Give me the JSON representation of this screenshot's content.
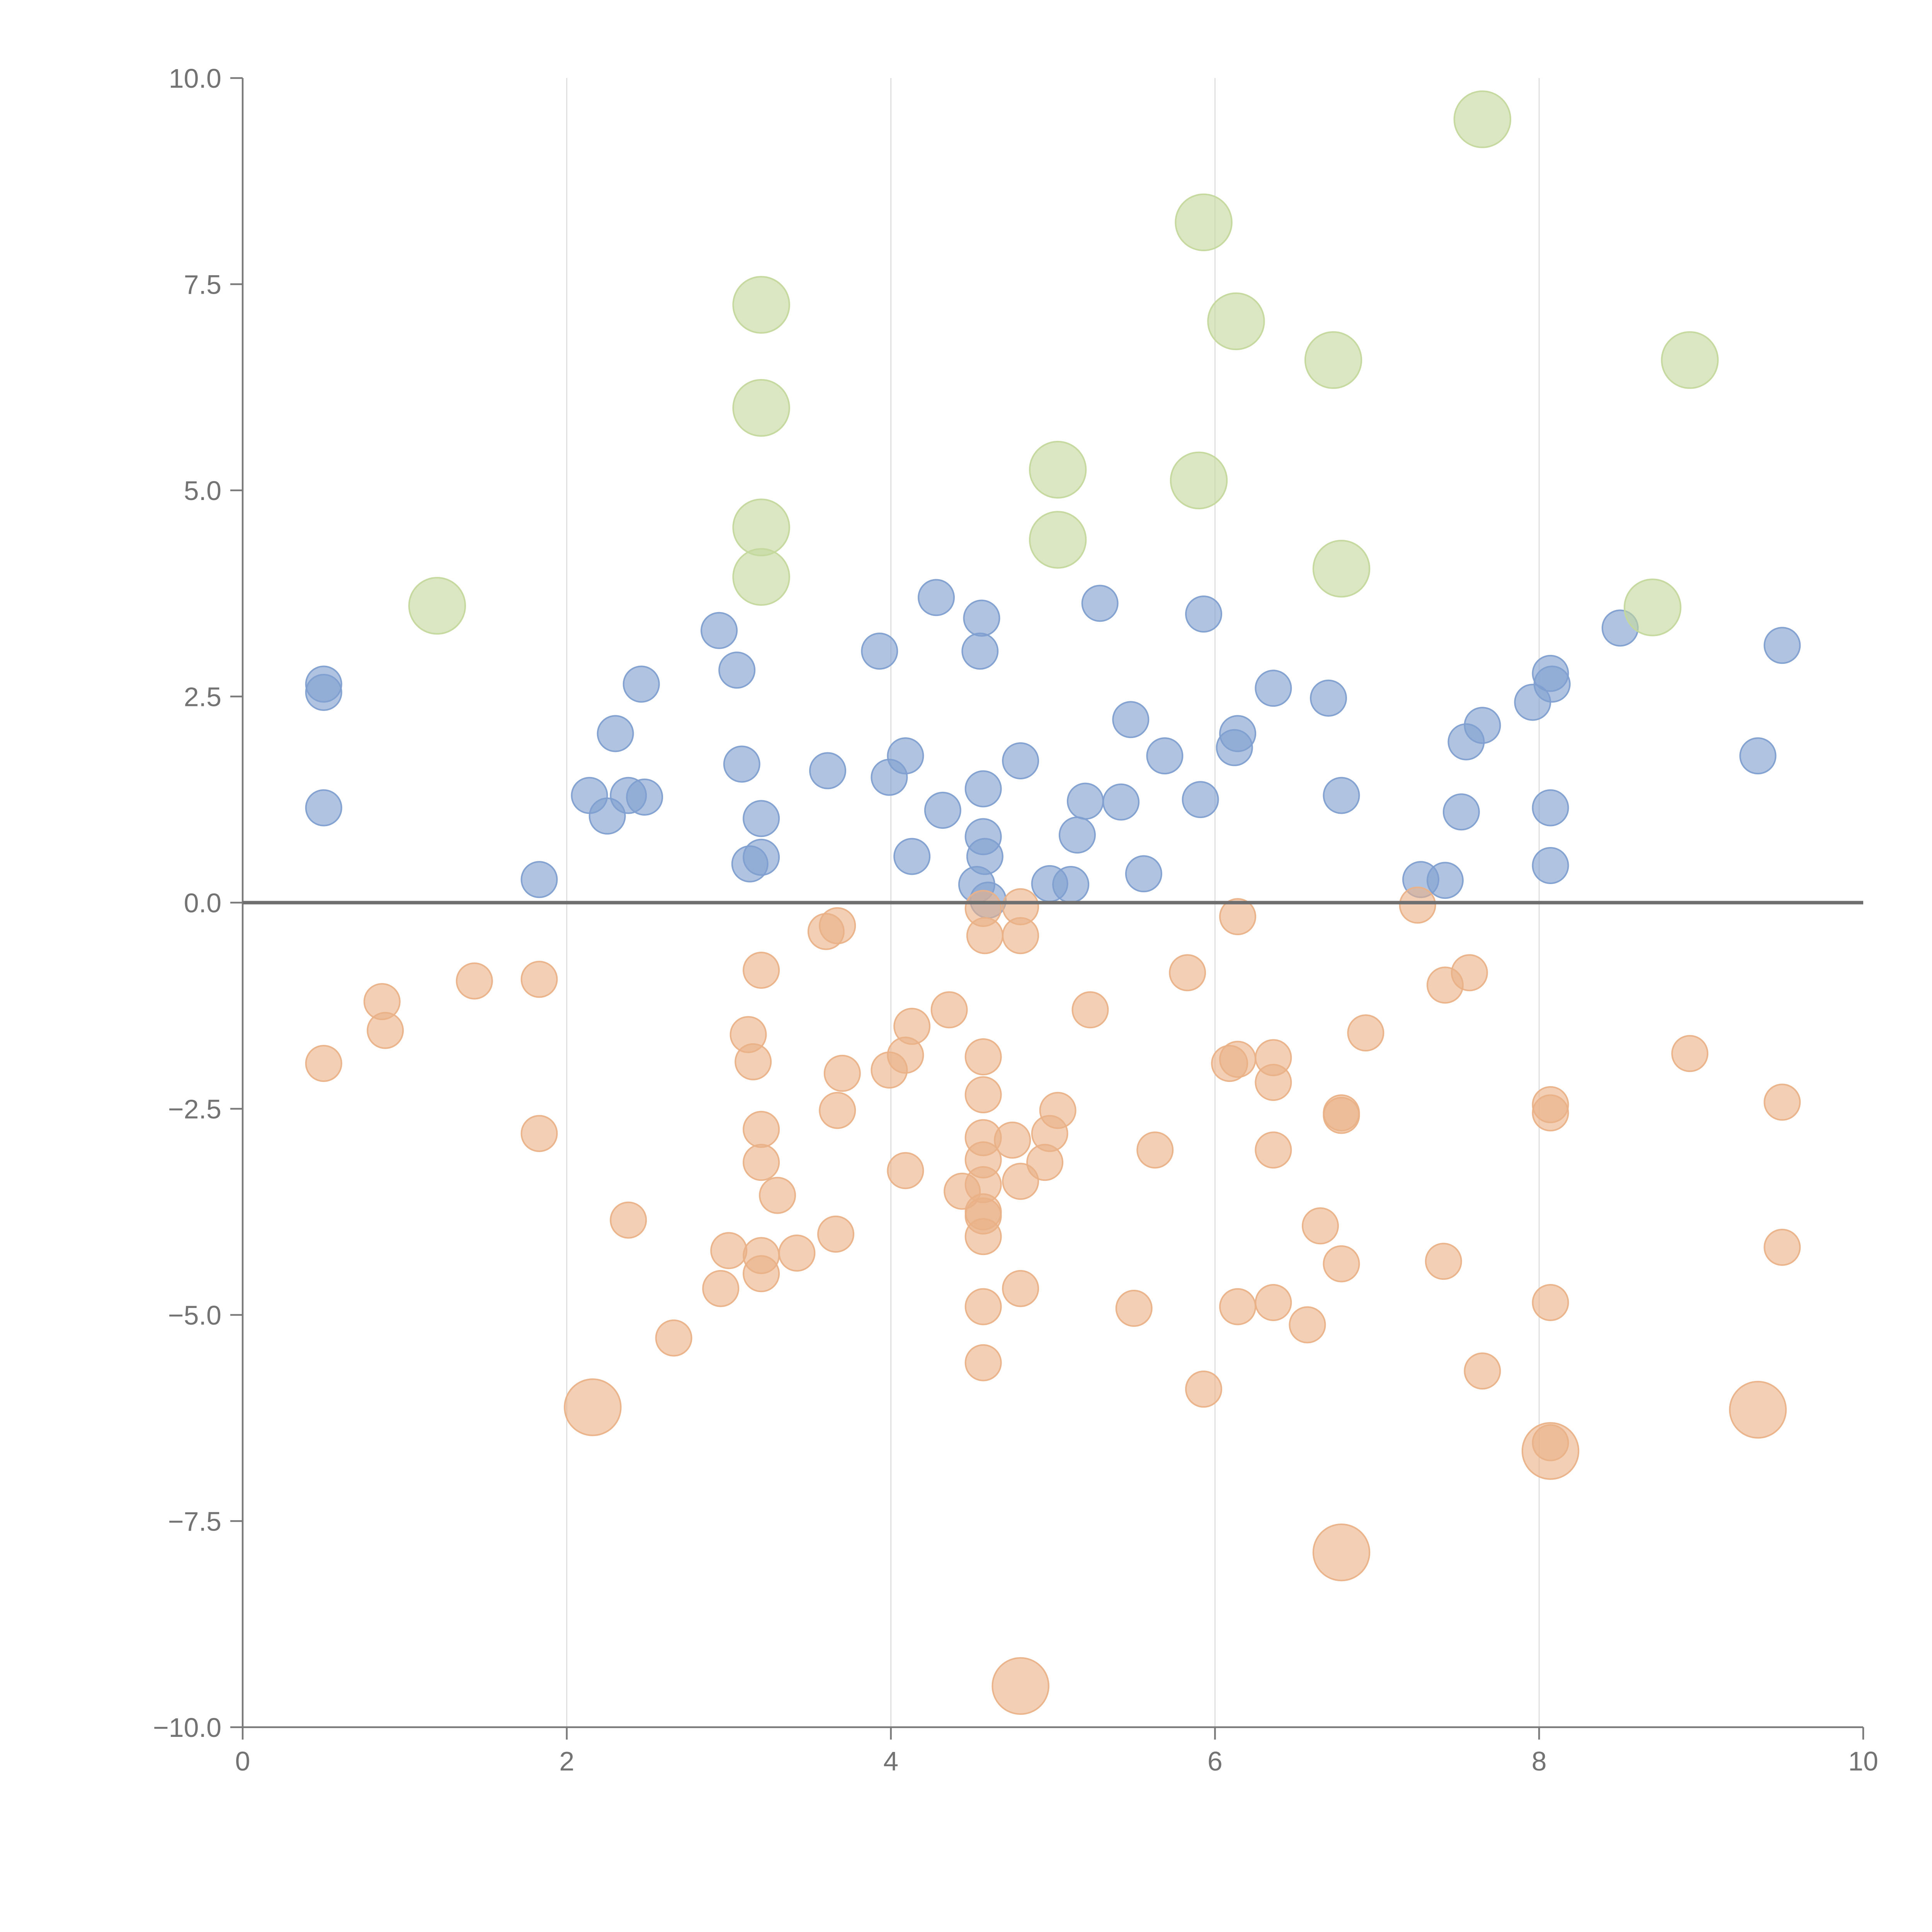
{
  "chart_data": {
    "type": "scatter",
    "title": "",
    "xlabel": "",
    "ylabel": "",
    "xlim": [
      0,
      10
    ],
    "ylim": [
      -10,
      10
    ],
    "x_ticks": [
      "0",
      "2",
      "4",
      "6",
      "8",
      "10"
    ],
    "y_ticks": [
      "10.0",
      "7.5",
      "5.0",
      "2.5",
      "0.0",
      "−2.5",
      "−5.0",
      "−7.5",
      "−10.0"
    ],
    "grid": "vertical",
    "series": [
      {
        "name": "blue",
        "color": "#7f9fd0",
        "size": 1,
        "points": [
          [
            0.5,
            2.65
          ],
          [
            0.5,
            2.55
          ],
          [
            0.5,
            1.15
          ],
          [
            1.83,
            0.28
          ],
          [
            2.14,
            1.3
          ],
          [
            2.25,
            1.05
          ],
          [
            2.3,
            2.05
          ],
          [
            2.38,
            1.3
          ],
          [
            2.46,
            2.65
          ],
          [
            2.48,
            1.28
          ],
          [
            2.94,
            3.3
          ],
          [
            3.05,
            2.82
          ],
          [
            3.08,
            1.68
          ],
          [
            3.13,
            0.47
          ],
          [
            3.2,
            1.02
          ],
          [
            3.2,
            0.55
          ],
          [
            3.61,
            1.6
          ],
          [
            3.93,
            3.05
          ],
          [
            3.99,
            1.52
          ],
          [
            4.09,
            1.78
          ],
          [
            4.13,
            0.56
          ],
          [
            4.28,
            3.7
          ],
          [
            4.32,
            1.12
          ],
          [
            4.53,
            0.22
          ],
          [
            4.55,
            3.05
          ],
          [
            4.56,
            3.45
          ],
          [
            4.57,
            1.38
          ],
          [
            4.57,
            0.8
          ],
          [
            4.58,
            0.56
          ],
          [
            4.6,
            0.03
          ],
          [
            4.8,
            1.72
          ],
          [
            4.98,
            0.23
          ],
          [
            5.11,
            0.22
          ],
          [
            5.15,
            0.82
          ],
          [
            5.2,
            1.23
          ],
          [
            5.29,
            3.63
          ],
          [
            5.42,
            1.22
          ],
          [
            5.48,
            2.22
          ],
          [
            5.56,
            0.35
          ],
          [
            5.69,
            1.78
          ],
          [
            5.91,
            1.25
          ],
          [
            5.93,
            3.5
          ],
          [
            6.12,
            1.88
          ],
          [
            6.14,
            2.05
          ],
          [
            6.36,
            2.6
          ],
          [
            6.7,
            2.48
          ],
          [
            6.78,
            1.3
          ],
          [
            7.27,
            0.28
          ],
          [
            7.42,
            0.27
          ],
          [
            7.52,
            1.1
          ],
          [
            7.55,
            1.95
          ],
          [
            7.65,
            2.15
          ],
          [
            7.96,
            2.43
          ],
          [
            8.07,
            2.78
          ],
          [
            8.07,
            1.15
          ],
          [
            8.07,
            0.45
          ],
          [
            8.08,
            2.65
          ],
          [
            8.5,
            3.33
          ],
          [
            9.35,
            1.78
          ],
          [
            9.5,
            3.12
          ]
        ]
      },
      {
        "name": "orange",
        "color": "#eab187",
        "size": 1,
        "points": [
          [
            0.5,
            -1.95
          ],
          [
            0.86,
            -1.2
          ],
          [
            0.88,
            -1.55
          ],
          [
            1.43,
            -0.95
          ],
          [
            1.83,
            -0.93
          ],
          [
            1.83,
            -2.8
          ],
          [
            2.38,
            -3.85
          ],
          [
            2.66,
            -5.28
          ],
          [
            2.95,
            -4.68
          ],
          [
            3.0,
            -4.22
          ],
          [
            3.12,
            -1.6
          ],
          [
            3.15,
            -1.93
          ],
          [
            3.2,
            -0.82
          ],
          [
            3.2,
            -2.75
          ],
          [
            3.2,
            -3.15
          ],
          [
            3.2,
            -4.28
          ],
          [
            3.2,
            -4.5
          ],
          [
            3.3,
            -3.55
          ],
          [
            3.42,
            -4.25
          ],
          [
            3.6,
            -0.35
          ],
          [
            3.67,
            -0.28
          ],
          [
            3.66,
            -4.02
          ],
          [
            3.67,
            -2.52
          ],
          [
            3.7,
            -2.07
          ],
          [
            3.99,
            -2.03
          ],
          [
            4.09,
            -3.25
          ],
          [
            4.09,
            -1.85
          ],
          [
            4.13,
            -1.5
          ],
          [
            4.36,
            -1.3
          ],
          [
            4.44,
            -3.5
          ],
          [
            4.57,
            -0.07
          ],
          [
            4.58,
            -0.4
          ],
          [
            4.57,
            -1.87
          ],
          [
            4.57,
            -2.33
          ],
          [
            4.57,
            -2.85
          ],
          [
            4.57,
            -3.12
          ],
          [
            4.57,
            -3.42
          ],
          [
            4.57,
            -3.75
          ],
          [
            4.57,
            -3.8
          ],
          [
            4.57,
            -4.05
          ],
          [
            4.57,
            -4.9
          ],
          [
            4.57,
            -5.58
          ],
          [
            4.75,
            -2.88
          ],
          [
            4.8,
            -0.05
          ],
          [
            4.8,
            -0.4
          ],
          [
            4.8,
            -3.38
          ],
          [
            4.8,
            -4.68
          ],
          [
            4.95,
            -3.15
          ],
          [
            4.98,
            -2.8
          ],
          [
            5.03,
            -2.52
          ],
          [
            5.23,
            -1.3
          ],
          [
            5.5,
            -4.92
          ],
          [
            5.63,
            -3.0
          ],
          [
            5.83,
            -0.85
          ],
          [
            5.93,
            -5.9
          ],
          [
            6.09,
            -1.95
          ],
          [
            6.14,
            -0.17
          ],
          [
            6.14,
            -1.9
          ],
          [
            6.14,
            -4.9
          ],
          [
            6.36,
            -1.88
          ],
          [
            6.36,
            -2.18
          ],
          [
            6.36,
            -3.0
          ],
          [
            6.36,
            -4.85
          ],
          [
            6.57,
            -5.12
          ],
          [
            6.65,
            -3.92
          ],
          [
            6.78,
            -2.55
          ],
          [
            6.78,
            -2.58
          ],
          [
            6.78,
            -4.38
          ],
          [
            6.93,
            -1.58
          ],
          [
            7.25,
            -0.03
          ],
          [
            7.41,
            -4.35
          ],
          [
            7.42,
            -1.0
          ],
          [
            7.57,
            -0.85
          ],
          [
            7.65,
            -5.68
          ],
          [
            8.07,
            -2.45
          ],
          [
            8.07,
            -2.55
          ],
          [
            8.07,
            -4.85
          ],
          [
            8.07,
            -6.55
          ],
          [
            8.93,
            -1.83
          ],
          [
            9.5,
            -2.42
          ],
          [
            9.5,
            -4.18
          ]
        ]
      },
      {
        "name": "orange-large",
        "color": "#eab187",
        "size": 2.5,
        "points": [
          [
            2.16,
            -6.12
          ],
          [
            4.8,
            -9.5
          ],
          [
            6.78,
            -7.88
          ],
          [
            8.07,
            -6.65
          ],
          [
            9.35,
            -6.15
          ]
        ]
      },
      {
        "name": "green",
        "color": "#c4d89c",
        "size": 2.5,
        "points": [
          [
            1.2,
            3.6
          ],
          [
            3.2,
            7.25
          ],
          [
            3.2,
            6.0
          ],
          [
            3.2,
            4.55
          ],
          [
            3.2,
            3.95
          ],
          [
            5.03,
            5.25
          ],
          [
            5.03,
            4.4
          ],
          [
            5.9,
            5.12
          ],
          [
            5.93,
            8.25
          ],
          [
            6.13,
            7.05
          ],
          [
            6.73,
            6.58
          ],
          [
            6.78,
            4.05
          ],
          [
            7.65,
            9.5
          ],
          [
            8.7,
            3.58
          ],
          [
            8.93,
            6.58
          ]
        ]
      }
    ]
  }
}
